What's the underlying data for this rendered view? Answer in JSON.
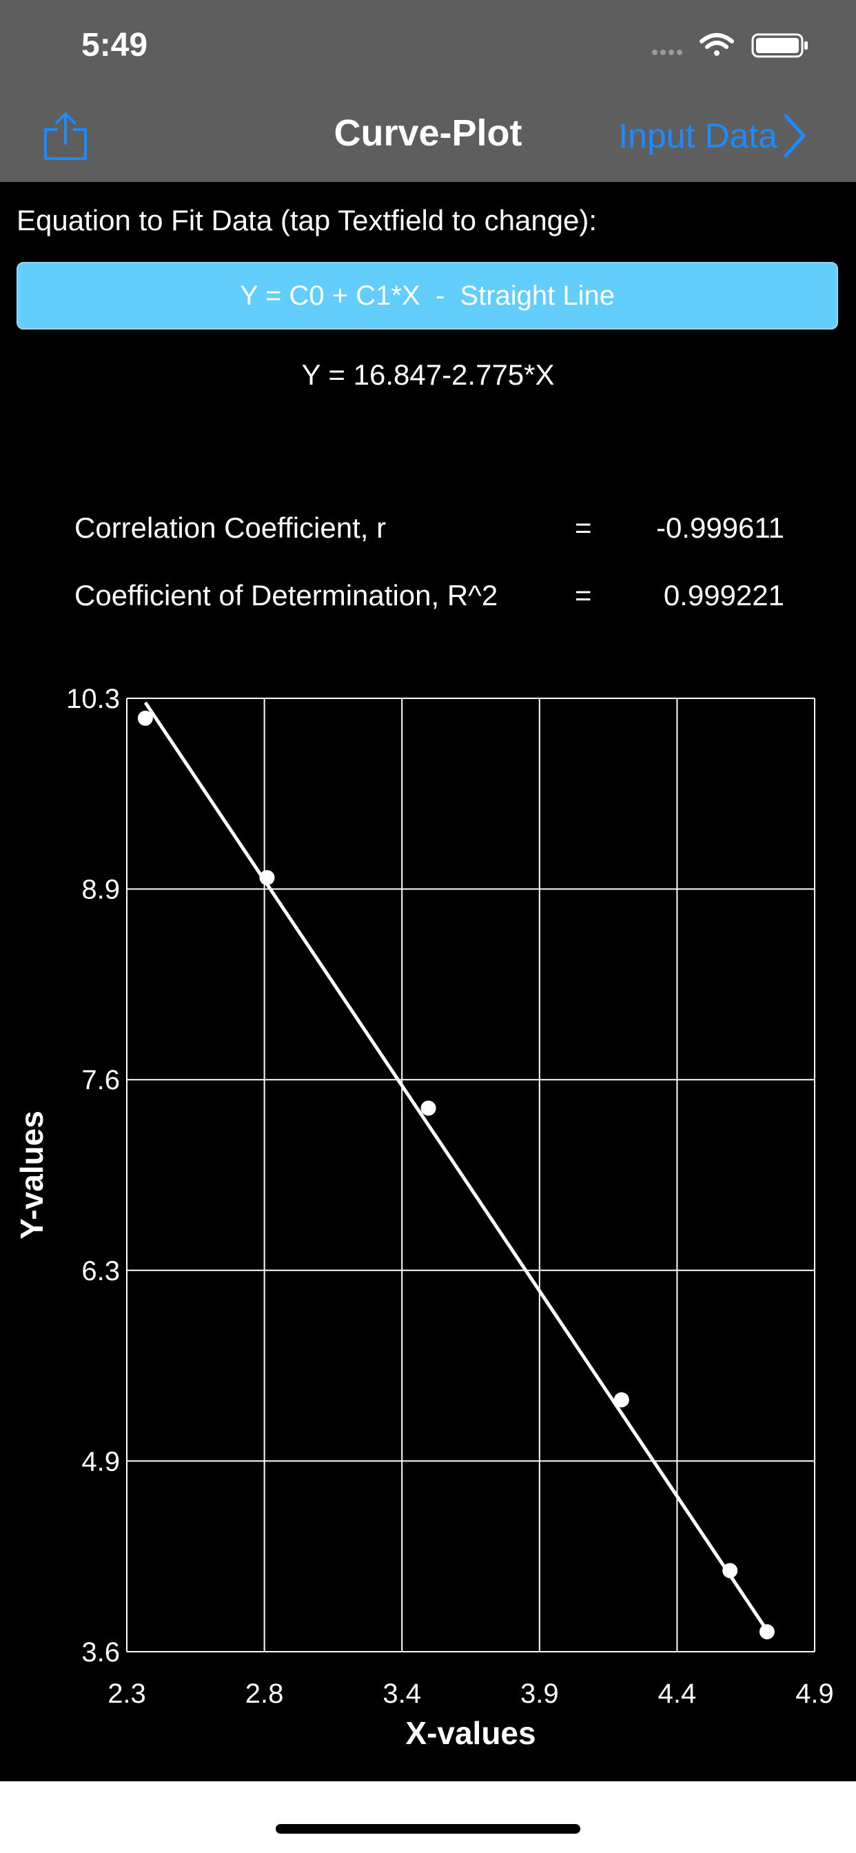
{
  "status_bar": {
    "time": "5:49"
  },
  "nav": {
    "title": "Curve-Plot",
    "input_data_label": "Input Data"
  },
  "equation": {
    "label": "Equation to Fit Data (tap Textfield to change):",
    "field_value": "Y = C0 + C1*X  -  Straight Line",
    "fitted": "Y = 16.847-2.775*X"
  },
  "stats": {
    "r_label": "Correlation Coefficient, r",
    "r_equals": "=",
    "r_value": "-0.999611",
    "r2_label": "Coefficient of Determination, R^2",
    "r2_equals": "=",
    "r2_value": "0.999221"
  },
  "colors": {
    "header_bg": "#5e5e5e",
    "accent": "#1a8cff",
    "field_bg": "#63cdfb"
  },
  "chart_data": {
    "type": "scatter",
    "xlabel": "X-values",
    "ylabel": "Y-values",
    "xlim": [
      2.3,
      4.9
    ],
    "ylim": [
      3.6,
      10.3
    ],
    "xticks": [
      "2.3",
      "2.8",
      "3.4",
      "3.9",
      "4.4",
      "4.9"
    ],
    "yticks": [
      "10.3",
      "8.9",
      "7.6",
      "6.3",
      "4.9",
      "3.6"
    ],
    "grid": true,
    "points": [
      {
        "x": 2.37,
        "y": 10.16
      },
      {
        "x": 2.83,
        "y": 9.04
      },
      {
        "x": 3.44,
        "y": 7.42
      },
      {
        "x": 4.17,
        "y": 5.37
      },
      {
        "x": 4.58,
        "y": 4.17
      },
      {
        "x": 4.72,
        "y": 3.74
      }
    ],
    "fit_line": {
      "c0": 16.847,
      "c1": -2.775
    }
  }
}
